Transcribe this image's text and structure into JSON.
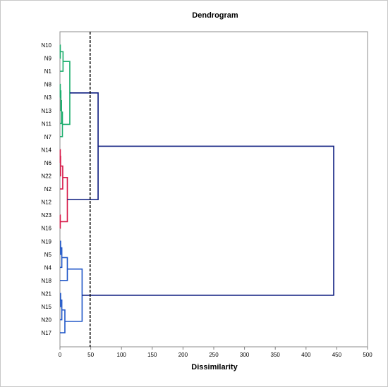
{
  "chart_data": {
    "type": "dendrogram",
    "title": "Dendrogram",
    "xlabel": "Dissimilarity",
    "xlim": [
      0,
      500
    ],
    "x_ticks": [
      0,
      50,
      100,
      150,
      200,
      250,
      300,
      350,
      400,
      450,
      500
    ],
    "x_tick_labels": [
      "0",
      "50",
      "100",
      "150",
      "200",
      "250",
      "300",
      "350",
      "400",
      "450",
      "500"
    ],
    "cut_threshold": 49,
    "grid": false,
    "colors": {
      "cluster_green": "#1fae6e",
      "cluster_red": "#d81b4a",
      "cluster_blue": "#1f56c8",
      "root_navy": "#0b1b7f",
      "cutline": "#000000"
    },
    "leaves": [
      "N10",
      "N9",
      "N1",
      "N8",
      "N3",
      "N13",
      "N11",
      "N7",
      "N14",
      "N6",
      "N22",
      "N2",
      "N12",
      "N23",
      "N16",
      "N19",
      "N5",
      "N4",
      "N18",
      "N21",
      "N15",
      "N20",
      "N17"
    ],
    "merges": [
      {
        "id": "m1",
        "children": [
          "N10",
          "N9"
        ],
        "height": 0.5,
        "color": "cluster_green"
      },
      {
        "id": "m2",
        "children": [
          "m1",
          "N1"
        ],
        "height": 5,
        "color": "cluster_green"
      },
      {
        "id": "m3",
        "children": [
          "N8",
          "N3"
        ],
        "height": 0.5,
        "color": "cluster_green"
      },
      {
        "id": "m4",
        "children": [
          "m3",
          "N13"
        ],
        "height": 1.5,
        "color": "cluster_green"
      },
      {
        "id": "m5",
        "children": [
          "m4",
          "N11"
        ],
        "height": 2.5,
        "color": "cluster_green"
      },
      {
        "id": "m6",
        "children": [
          "m5",
          "N7"
        ],
        "height": 4,
        "color": "cluster_green"
      },
      {
        "id": "m7",
        "children": [
          "m2",
          "m6"
        ],
        "height": 16,
        "color": "cluster_green"
      },
      {
        "id": "m8",
        "children": [
          "N14",
          "N6"
        ],
        "height": 0.5,
        "color": "cluster_red"
      },
      {
        "id": "m9",
        "children": [
          "m8",
          "N22"
        ],
        "height": 1,
        "color": "cluster_red"
      },
      {
        "id": "m10",
        "children": [
          "m9",
          "N2"
        ],
        "height": 4.5,
        "color": "cluster_red"
      },
      {
        "id": "m11",
        "children": [
          "N23",
          "N16"
        ],
        "height": 0.5,
        "color": "cluster_red"
      },
      {
        "id": "m12",
        "children": [
          "m10",
          "m11"
        ],
        "height": 12,
        "color": "cluster_red",
        "leaf_join": "N12"
      },
      {
        "id": "m13",
        "children": [
          "m7",
          "m12"
        ],
        "height": 62,
        "color": "root_navy"
      },
      {
        "id": "m14",
        "children": [
          "N19",
          "N5"
        ],
        "height": 1,
        "color": "cluster_blue"
      },
      {
        "id": "m15",
        "children": [
          "m14",
          "N4"
        ],
        "height": 3,
        "color": "cluster_blue"
      },
      {
        "id": "m16",
        "children": [
          "m15",
          "N18"
        ],
        "height": 12,
        "color": "cluster_blue"
      },
      {
        "id": "m17",
        "children": [
          "N21",
          "N15"
        ],
        "height": 1,
        "color": "cluster_blue"
      },
      {
        "id": "m18",
        "children": [
          "m17",
          "N20"
        ],
        "height": 3,
        "color": "cluster_blue"
      },
      {
        "id": "m19",
        "children": [
          "m18",
          "N17"
        ],
        "height": 8,
        "color": "cluster_blue"
      },
      {
        "id": "m20",
        "children": [
          "m16",
          "m19"
        ],
        "height": 36,
        "color": "cluster_blue"
      },
      {
        "id": "m21",
        "children": [
          "m13",
          "m20"
        ],
        "height": 445,
        "color": "root_navy"
      }
    ]
  }
}
